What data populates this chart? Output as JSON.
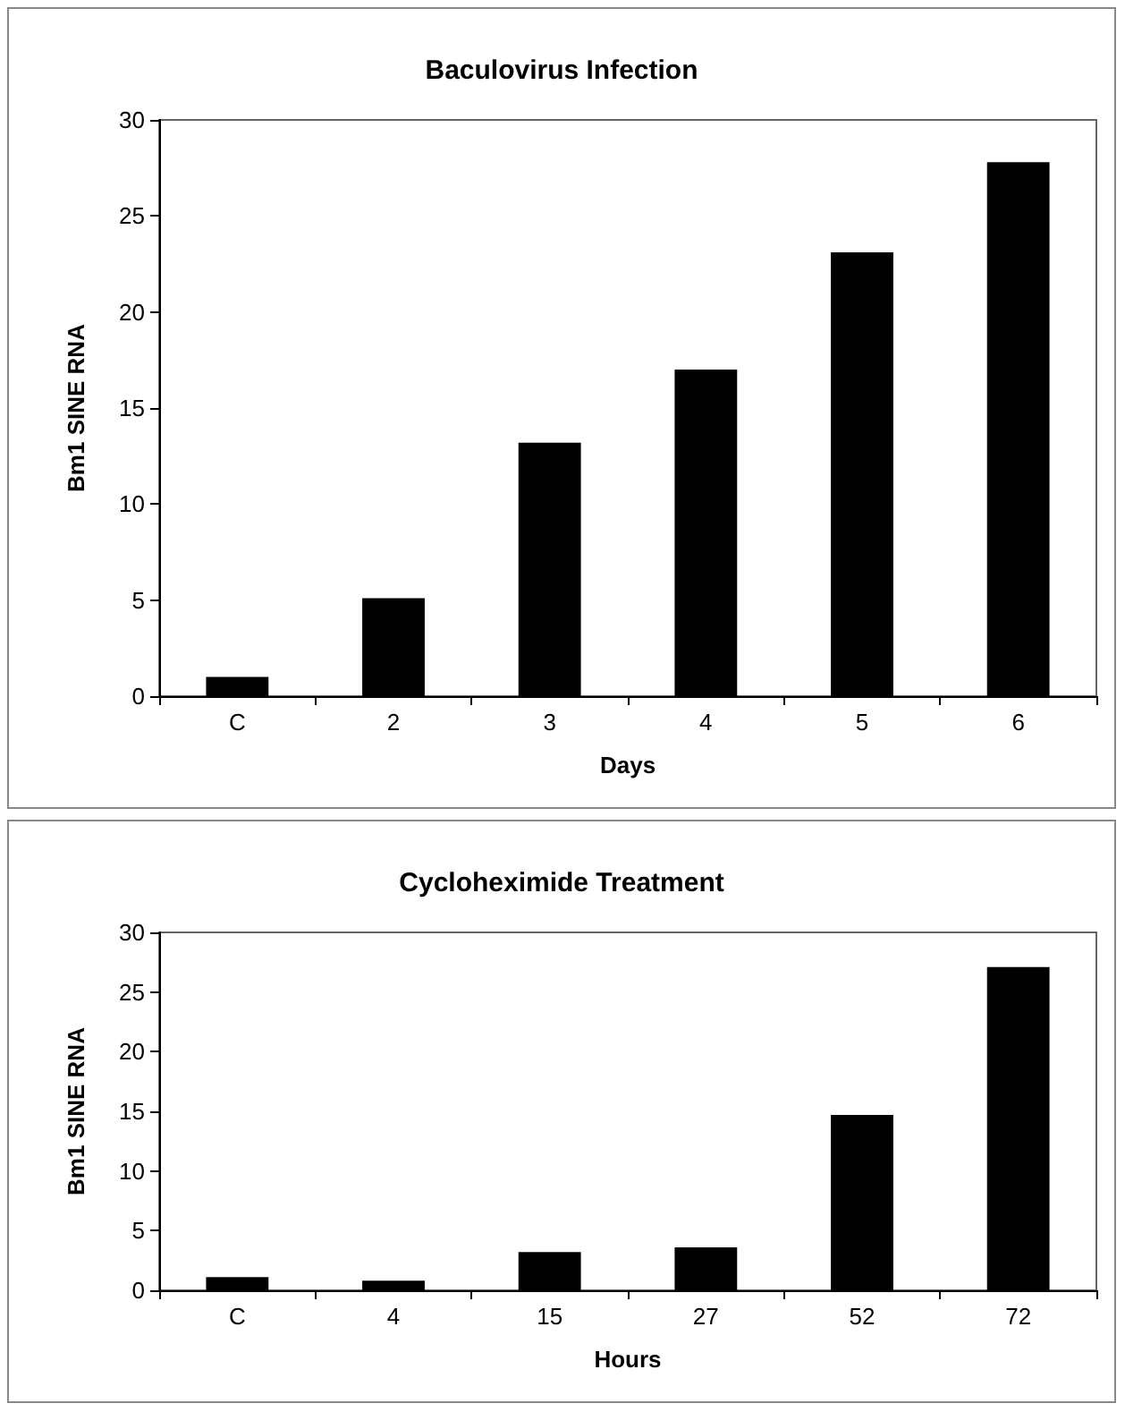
{
  "chart_data": [
    {
      "type": "bar",
      "title": "Baculovirus Infection",
      "xlabel": "Days",
      "ylabel": "Bm1 SINE RNA",
      "categories": [
        "C",
        "2",
        "3",
        "4",
        "5",
        "6"
      ],
      "values": [
        1.0,
        5.1,
        13.2,
        17.0,
        23.1,
        27.8
      ],
      "color": "#000000",
      "ylim": [
        0,
        30
      ],
      "yticks": [
        0,
        5,
        10,
        15,
        20,
        25,
        30
      ],
      "grid": false
    },
    {
      "type": "bar",
      "title": "Cycloheximide Treatment",
      "xlabel": "Hours",
      "ylabel": "Bm1 SINE RNA",
      "categories": [
        "C",
        "4",
        "15",
        "27",
        "52",
        "72"
      ],
      "values": [
        1.1,
        0.8,
        3.2,
        3.6,
        14.7,
        27.1
      ],
      "color": "#000000",
      "ylim": [
        0,
        30
      ],
      "yticks": [
        0,
        5,
        10,
        15,
        20,
        25,
        30
      ],
      "grid": false
    }
  ]
}
